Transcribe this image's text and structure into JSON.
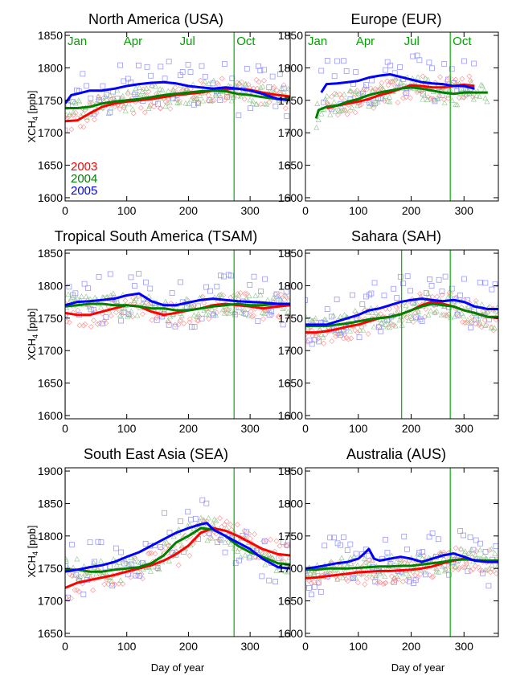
{
  "figure": {
    "xlabel": "Day of year",
    "ylabel_main": "XCH",
    "ylabel_sub": "4",
    "ylabel_unit": " [ppb]",
    "colors": {
      "2003": "#ff0000",
      "2004": "#008000",
      "2005": "#0000ff",
      "month_text": "#00a000",
      "month_line": "#00b000"
    }
  },
  "chart_data": [
    {
      "type": "line",
      "title": "North America (USA)",
      "xlim": [
        0,
        365
      ],
      "ylim": [
        1595,
        1855
      ],
      "xticks": [
        0,
        100,
        200,
        300
      ],
      "yticks": [
        1600,
        1650,
        1700,
        1750,
        1800,
        1850
      ],
      "month_labels": [
        "Jan",
        "Apr",
        "Jul",
        "Oct"
      ],
      "month_label_days": [
        0,
        91,
        182,
        274
      ],
      "vlines": [
        0,
        274
      ],
      "legend": [
        "2003",
        "2004",
        "2005"
      ],
      "series": [
        {
          "name": "2003",
          "color": "#ff0000",
          "x": [
            0,
            20,
            40,
            60,
            80,
            100,
            120,
            140,
            160,
            180,
            200,
            220,
            240,
            260,
            280,
            300,
            320,
            345,
            365
          ],
          "y": [
            1718,
            1719,
            1730,
            1740,
            1745,
            1748,
            1750,
            1752,
            1755,
            1758,
            1760,
            1762,
            1765,
            1767,
            1768,
            1766,
            1762,
            1758,
            1756
          ]
        },
        {
          "name": "2004",
          "color": "#008000",
          "x": [
            0,
            20,
            40,
            60,
            80,
            100,
            120,
            140,
            160,
            180,
            200,
            220,
            240,
            260,
            280,
            300,
            320,
            345,
            365
          ],
          "y": [
            1738,
            1738,
            1740,
            1745,
            1748,
            1750,
            1752,
            1755,
            1758,
            1760,
            1762,
            1764,
            1765,
            1764,
            1760,
            1758,
            1755,
            1752,
            1752
          ]
        },
        {
          "name": "2005",
          "color": "#0000ff",
          "x": [
            0,
            10,
            20,
            40,
            60,
            80,
            100,
            120,
            140,
            160,
            180,
            200,
            220,
            240,
            260,
            280,
            300,
            320,
            345,
            365
          ],
          "y": [
            1745,
            1758,
            1760,
            1765,
            1765,
            1768,
            1772,
            1775,
            1777,
            1778,
            1776,
            1772,
            1770,
            1768,
            1770,
            1768,
            1765,
            1760,
            1752,
            1750
          ]
        }
      ]
    },
    {
      "type": "line",
      "title": "Europe (EUR)",
      "xlim": [
        0,
        365
      ],
      "ylim": [
        1595,
        1855
      ],
      "xticks": [
        0,
        100,
        200,
        300
      ],
      "yticks": [
        1600,
        1650,
        1700,
        1750,
        1800,
        1850
      ],
      "month_labels": [
        "Jan",
        "Apr",
        "Jul",
        "Oct"
      ],
      "month_label_days": [
        0,
        91,
        182,
        274
      ],
      "vlines": [
        274
      ],
      "legend": [],
      "series": [
        {
          "name": "2003",
          "color": "#ff0000",
          "x": [
            40,
            60,
            80,
            100,
            120,
            140,
            160,
            180,
            200,
            220,
            240,
            260,
            280,
            300,
            320
          ],
          "y": [
            1738,
            1742,
            1745,
            1748,
            1752,
            1758,
            1762,
            1768,
            1773,
            1772,
            1770,
            1770,
            1772,
            1774,
            1772
          ]
        },
        {
          "name": "2004",
          "color": "#008000",
          "x": [
            20,
            25,
            40,
            60,
            80,
            100,
            120,
            140,
            160,
            180,
            200,
            220,
            240,
            260,
            280,
            300,
            320,
            345
          ],
          "y": [
            1722,
            1735,
            1740,
            1742,
            1748,
            1752,
            1758,
            1762,
            1765,
            1768,
            1770,
            1768,
            1765,
            1762,
            1760,
            1762,
            1762,
            1762
          ]
        },
        {
          "name": "2005",
          "color": "#0000ff",
          "x": [
            30,
            40,
            60,
            80,
            100,
            120,
            140,
            160,
            180,
            200,
            220,
            240,
            260,
            280,
            300,
            320
          ],
          "y": [
            1762,
            1775,
            1776,
            1778,
            1780,
            1785,
            1788,
            1790,
            1786,
            1782,
            1778,
            1776,
            1775,
            1772,
            1772,
            1768
          ]
        }
      ]
    },
    {
      "type": "line",
      "title": "Tropical South America (TSAM)",
      "xlim": [
        0,
        365
      ],
      "ylim": [
        1595,
        1855
      ],
      "xticks": [
        0,
        100,
        200,
        300
      ],
      "yticks": [
        1600,
        1650,
        1700,
        1750,
        1800,
        1850
      ],
      "month_labels": [],
      "month_label_days": [],
      "vlines": [
        0,
        274
      ],
      "legend": [],
      "series": [
        {
          "name": "2003",
          "color": "#ff0000",
          "x": [
            0,
            20,
            40,
            60,
            80,
            100,
            120,
            140,
            160,
            180,
            200,
            220,
            240,
            260,
            280,
            300,
            320,
            345,
            365
          ],
          "y": [
            1758,
            1755,
            1755,
            1760,
            1765,
            1770,
            1768,
            1760,
            1755,
            1758,
            1762,
            1765,
            1770,
            1772,
            1770,
            1768,
            1765,
            1768,
            1770
          ]
        },
        {
          "name": "2004",
          "color": "#008000",
          "x": [
            0,
            20,
            40,
            60,
            80,
            100,
            120,
            140,
            160,
            180,
            200,
            220,
            240,
            260,
            280,
            300,
            320,
            345,
            365
          ],
          "y": [
            1768,
            1770,
            1772,
            1772,
            1770,
            1770,
            1768,
            1765,
            1765,
            1762,
            1762,
            1765,
            1768,
            1770,
            1772,
            1770,
            1770,
            1772,
            1772
          ]
        },
        {
          "name": "2005",
          "color": "#0000ff",
          "x": [
            0,
            20,
            40,
            60,
            80,
            100,
            120,
            140,
            160,
            180,
            200,
            220,
            240,
            260,
            280,
            300,
            320,
            345,
            365
          ],
          "y": [
            1770,
            1775,
            1776,
            1778,
            1780,
            1785,
            1788,
            1776,
            1770,
            1770,
            1774,
            1778,
            1780,
            1778,
            1776,
            1775,
            1774,
            1772,
            1772
          ]
        }
      ]
    },
    {
      "type": "line",
      "title": "Sahara (SAH)",
      "xlim": [
        0,
        365
      ],
      "ylim": [
        1595,
        1855
      ],
      "xticks": [
        0,
        100,
        200,
        300
      ],
      "yticks": [
        1600,
        1650,
        1700,
        1750,
        1800,
        1850
      ],
      "month_labels": [],
      "month_label_days": [],
      "vlines": [
        182,
        274
      ],
      "legend": [],
      "series": [
        {
          "name": "2003",
          "color": "#ff0000",
          "x": [
            0,
            20,
            40,
            60,
            80,
            100,
            120,
            140,
            160,
            180,
            200,
            220,
            240,
            260,
            280,
            300,
            320,
            345,
            365
          ],
          "y": [
            1728,
            1728,
            1730,
            1733,
            1737,
            1740,
            1745,
            1750,
            1752,
            1756,
            1762,
            1770,
            1775,
            1772,
            1768,
            1762,
            1758,
            1752,
            1750
          ]
        },
        {
          "name": "2004",
          "color": "#008000",
          "x": [
            0,
            20,
            40,
            60,
            80,
            100,
            120,
            140,
            160,
            180,
            200,
            220,
            240,
            260,
            280,
            300,
            320,
            345,
            365
          ],
          "y": [
            1738,
            1738,
            1738,
            1740,
            1742,
            1745,
            1748,
            1750,
            1752,
            1756,
            1762,
            1768,
            1772,
            1770,
            1768,
            1762,
            1758,
            1752,
            1752
          ]
        },
        {
          "name": "2005",
          "color": "#0000ff",
          "x": [
            0,
            20,
            40,
            60,
            80,
            100,
            120,
            140,
            160,
            180,
            200,
            220,
            240,
            260,
            280,
            300,
            320,
            345,
            365
          ],
          "y": [
            1740,
            1740,
            1740,
            1745,
            1750,
            1755,
            1762,
            1765,
            1770,
            1775,
            1778,
            1780,
            1778,
            1776,
            1778,
            1775,
            1768,
            1764,
            1764
          ]
        }
      ]
    },
    {
      "type": "line",
      "title": "South East Asia (SEA)",
      "xlim": [
        0,
        365
      ],
      "ylim": [
        1645,
        1905
      ],
      "xticks": [
        0,
        100,
        200,
        300
      ],
      "yticks": [
        1650,
        1700,
        1750,
        1800,
        1850,
        1900
      ],
      "month_labels": [],
      "month_label_days": [],
      "vlines": [
        0,
        274
      ],
      "legend": [],
      "series": [
        {
          "name": "2003",
          "color": "#ff0000",
          "x": [
            0,
            20,
            40,
            60,
            80,
            100,
            120,
            140,
            160,
            180,
            200,
            220,
            240,
            260,
            280,
            300,
            320,
            345,
            365
          ],
          "y": [
            1720,
            1728,
            1732,
            1736,
            1740,
            1745,
            1750,
            1755,
            1762,
            1772,
            1785,
            1805,
            1812,
            1808,
            1800,
            1790,
            1780,
            1772,
            1770
          ]
        },
        {
          "name": "2004",
          "color": "#008000",
          "x": [
            0,
            20,
            40,
            60,
            80,
            100,
            120,
            140,
            160,
            180,
            200,
            220,
            240,
            260,
            280,
            300,
            320,
            345,
            365
          ],
          "y": [
            1748,
            1748,
            1745,
            1745,
            1748,
            1750,
            1752,
            1758,
            1770,
            1790,
            1800,
            1812,
            1810,
            1800,
            1785,
            1775,
            1768,
            1758,
            1756
          ]
        },
        {
          "name": "2005",
          "color": "#0000ff",
          "x": [
            0,
            20,
            40,
            60,
            80,
            100,
            120,
            140,
            160,
            180,
            200,
            220,
            230,
            240,
            260,
            280,
            300,
            320,
            345,
            365
          ],
          "y": [
            1745,
            1748,
            1752,
            1755,
            1760,
            1768,
            1775,
            1785,
            1795,
            1805,
            1812,
            1818,
            1820,
            1810,
            1800,
            1790,
            1780,
            1765,
            1752,
            1750
          ]
        }
      ]
    },
    {
      "type": "line",
      "title": "Australia (AUS)",
      "xlim": [
        0,
        365
      ],
      "ylim": [
        1595,
        1855
      ],
      "xticks": [
        0,
        100,
        200,
        300
      ],
      "yticks": [
        1600,
        1650,
        1700,
        1750,
        1800,
        1850
      ],
      "month_labels": [],
      "month_label_days": [],
      "vlines": [
        274
      ],
      "legend": [],
      "series": [
        {
          "name": "2003",
          "color": "#ff0000",
          "x": [
            0,
            20,
            40,
            60,
            80,
            100,
            120,
            140,
            160,
            180,
            200,
            220,
            240,
            260,
            280,
            300,
            320,
            345,
            365
          ],
          "y": [
            1685,
            1686,
            1688,
            1690,
            1692,
            1694,
            1695,
            1696,
            1696,
            1697,
            1698,
            1700,
            1703,
            1708,
            1712,
            1715,
            1713,
            1710,
            1710
          ]
        },
        {
          "name": "2004",
          "color": "#008000",
          "x": [
            0,
            20,
            40,
            60,
            80,
            100,
            120,
            140,
            160,
            180,
            200,
            220,
            240,
            260,
            280,
            300,
            320,
            345,
            365
          ],
          "y": [
            1698,
            1698,
            1700,
            1700,
            1700,
            1701,
            1702,
            1703,
            1703,
            1704,
            1704,
            1706,
            1708,
            1710,
            1713,
            1714,
            1713,
            1712,
            1712
          ]
        },
        {
          "name": "2005",
          "color": "#0000ff",
          "x": [
            0,
            20,
            40,
            60,
            80,
            100,
            110,
            120,
            130,
            140,
            160,
            180,
            200,
            220,
            240,
            260,
            280,
            300,
            320,
            345,
            365
          ],
          "y": [
            1700,
            1702,
            1705,
            1708,
            1710,
            1715,
            1722,
            1730,
            1715,
            1712,
            1715,
            1718,
            1715,
            1710,
            1715,
            1720,
            1723,
            1718,
            1712,
            1710,
            1710
          ]
        }
      ]
    }
  ]
}
